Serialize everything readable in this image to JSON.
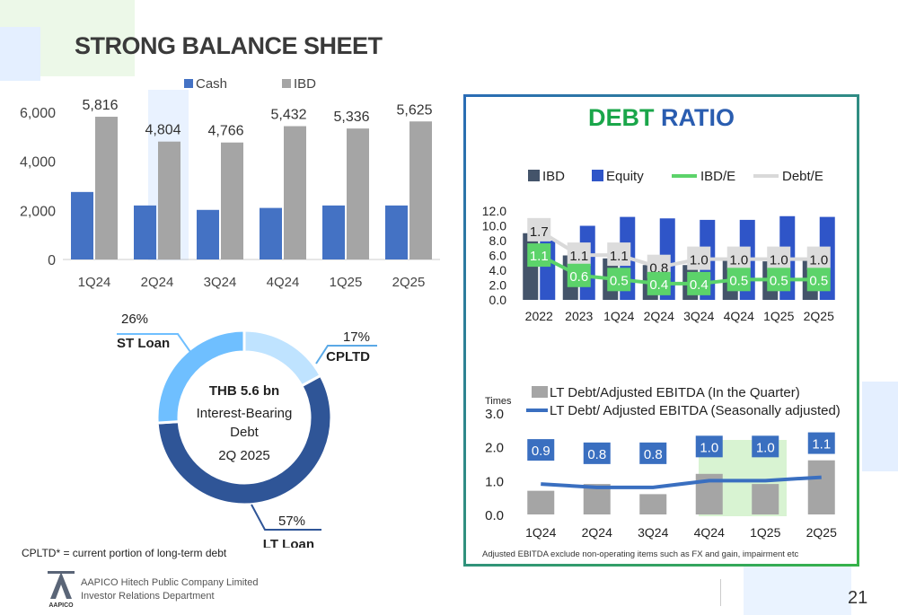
{
  "page": {
    "title": "STRONG BALANCE SHEET",
    "page_number": "21",
    "company_line1": "AAPICO Hitech Public Company Limited",
    "company_line2": "Investor Relations Department",
    "logo_text": "AAPICO",
    "footnote_left": "CPLTD* = current portion of long-term debt",
    "footnote_right": "Adjusted EBITDA exclude non-operating items such as FX and gain, impairment etc",
    "debt_ratio_title_1": "DEBT",
    "debt_ratio_title_2": "RATIO",
    "colors": {
      "cash": "#4472c4",
      "ibd_gray": "#a5a5a5",
      "ibd_dark": "#44546a",
      "equity": "#2f55c8",
      "green": "#5cd36a",
      "light_gray": "#d9d9d9",
      "donut_dark": "#2f5597",
      "donut_mid": "#6fbfff",
      "donut_light": "#bfe3ff"
    }
  },
  "chart_data": [
    {
      "type": "bar",
      "categories": [
        "1Q24",
        "2Q24",
        "3Q24",
        "4Q24",
        "1Q25",
        "2Q25"
      ],
      "series": [
        {
          "name": "Cash",
          "values": [
            2750,
            2200,
            2020,
            2100,
            2200,
            2200
          ]
        },
        {
          "name": "IBD",
          "values": [
            5816,
            4804,
            4766,
            5432,
            5336,
            5625
          ]
        }
      ],
      "data_labels": [
        "5,816",
        "4,804",
        "4,766",
        "5,432",
        "5,336",
        "5,625"
      ],
      "y_ticks": [
        "0",
        "2,000",
        "4,000",
        "6,000"
      ],
      "ylim": [
        0,
        6000
      ]
    },
    {
      "type": "pie",
      "center_line1": "THB 5.6 bn",
      "center_line2": "Interest-Bearing",
      "center_line3": "Debt",
      "center_line4": "2Q 2025",
      "slices": [
        {
          "name": "CPLTD",
          "value": 17,
          "label": "17%"
        },
        {
          "name": "LT Loan",
          "value": 57,
          "label": "57%"
        },
        {
          "name": "ST Loan",
          "value": 26,
          "label": "26%"
        }
      ]
    },
    {
      "type": "bar",
      "categories": [
        "2022",
        "2023",
        "1Q24",
        "2Q24",
        "3Q24",
        "4Q24",
        "1Q25",
        "2Q25"
      ],
      "series": [
        {
          "name": "IBD",
          "values": [
            9.0,
            6.0,
            5.6,
            4.7,
            4.7,
            5.3,
            5.2,
            5.6
          ]
        },
        {
          "name": "Equity",
          "values": [
            8.0,
            10.0,
            11.2,
            11.0,
            10.8,
            10.8,
            11.3,
            11.2
          ]
        },
        {
          "name": "IBD/E",
          "values": [
            1.1,
            0.6,
            0.5,
            0.4,
            0.4,
            0.5,
            0.5,
            0.5
          ],
          "labels": [
            "1.1",
            "0.6",
            "0.5",
            "0.4",
            "0.4",
            "0.5",
            "0.5",
            "0.5"
          ]
        },
        {
          "name": "Debt/E",
          "values": [
            1.7,
            1.1,
            1.1,
            0.8,
            1.0,
            1.0,
            1.0,
            1.0
          ],
          "labels": [
            "1.7",
            "1.1",
            "1.1",
            "0.8",
            "1.0",
            "1.0",
            "1.0",
            "1.0"
          ]
        }
      ],
      "y_ticks": [
        "0.0",
        "2.0",
        "4.0",
        "6.0",
        "8.0",
        "10.0",
        "12.0"
      ],
      "ylim": [
        0,
        12
      ]
    },
    {
      "type": "bar",
      "categories": [
        "1Q24",
        "2Q24",
        "3Q24",
        "4Q24",
        "1Q25",
        "2Q25"
      ],
      "series": [
        {
          "name": "LT Debt/Adjusted EBITDA (In the Quarter)",
          "values": [
            0.7,
            0.9,
            0.6,
            1.2,
            0.9,
            1.6
          ]
        },
        {
          "name": "LT Debt/ Adjusted EBITDA (Seasonally adjusted)",
          "values": [
            0.9,
            0.8,
            0.8,
            1.0,
            1.0,
            1.1
          ],
          "labels": [
            "0.9",
            "0.8",
            "0.8",
            "1.0",
            "1.0",
            "1.1"
          ]
        }
      ],
      "ylabel": "Times",
      "y_ticks": [
        "0.0",
        "1.0",
        "2.0",
        "3.0"
      ],
      "ylim": [
        0,
        3
      ]
    }
  ]
}
